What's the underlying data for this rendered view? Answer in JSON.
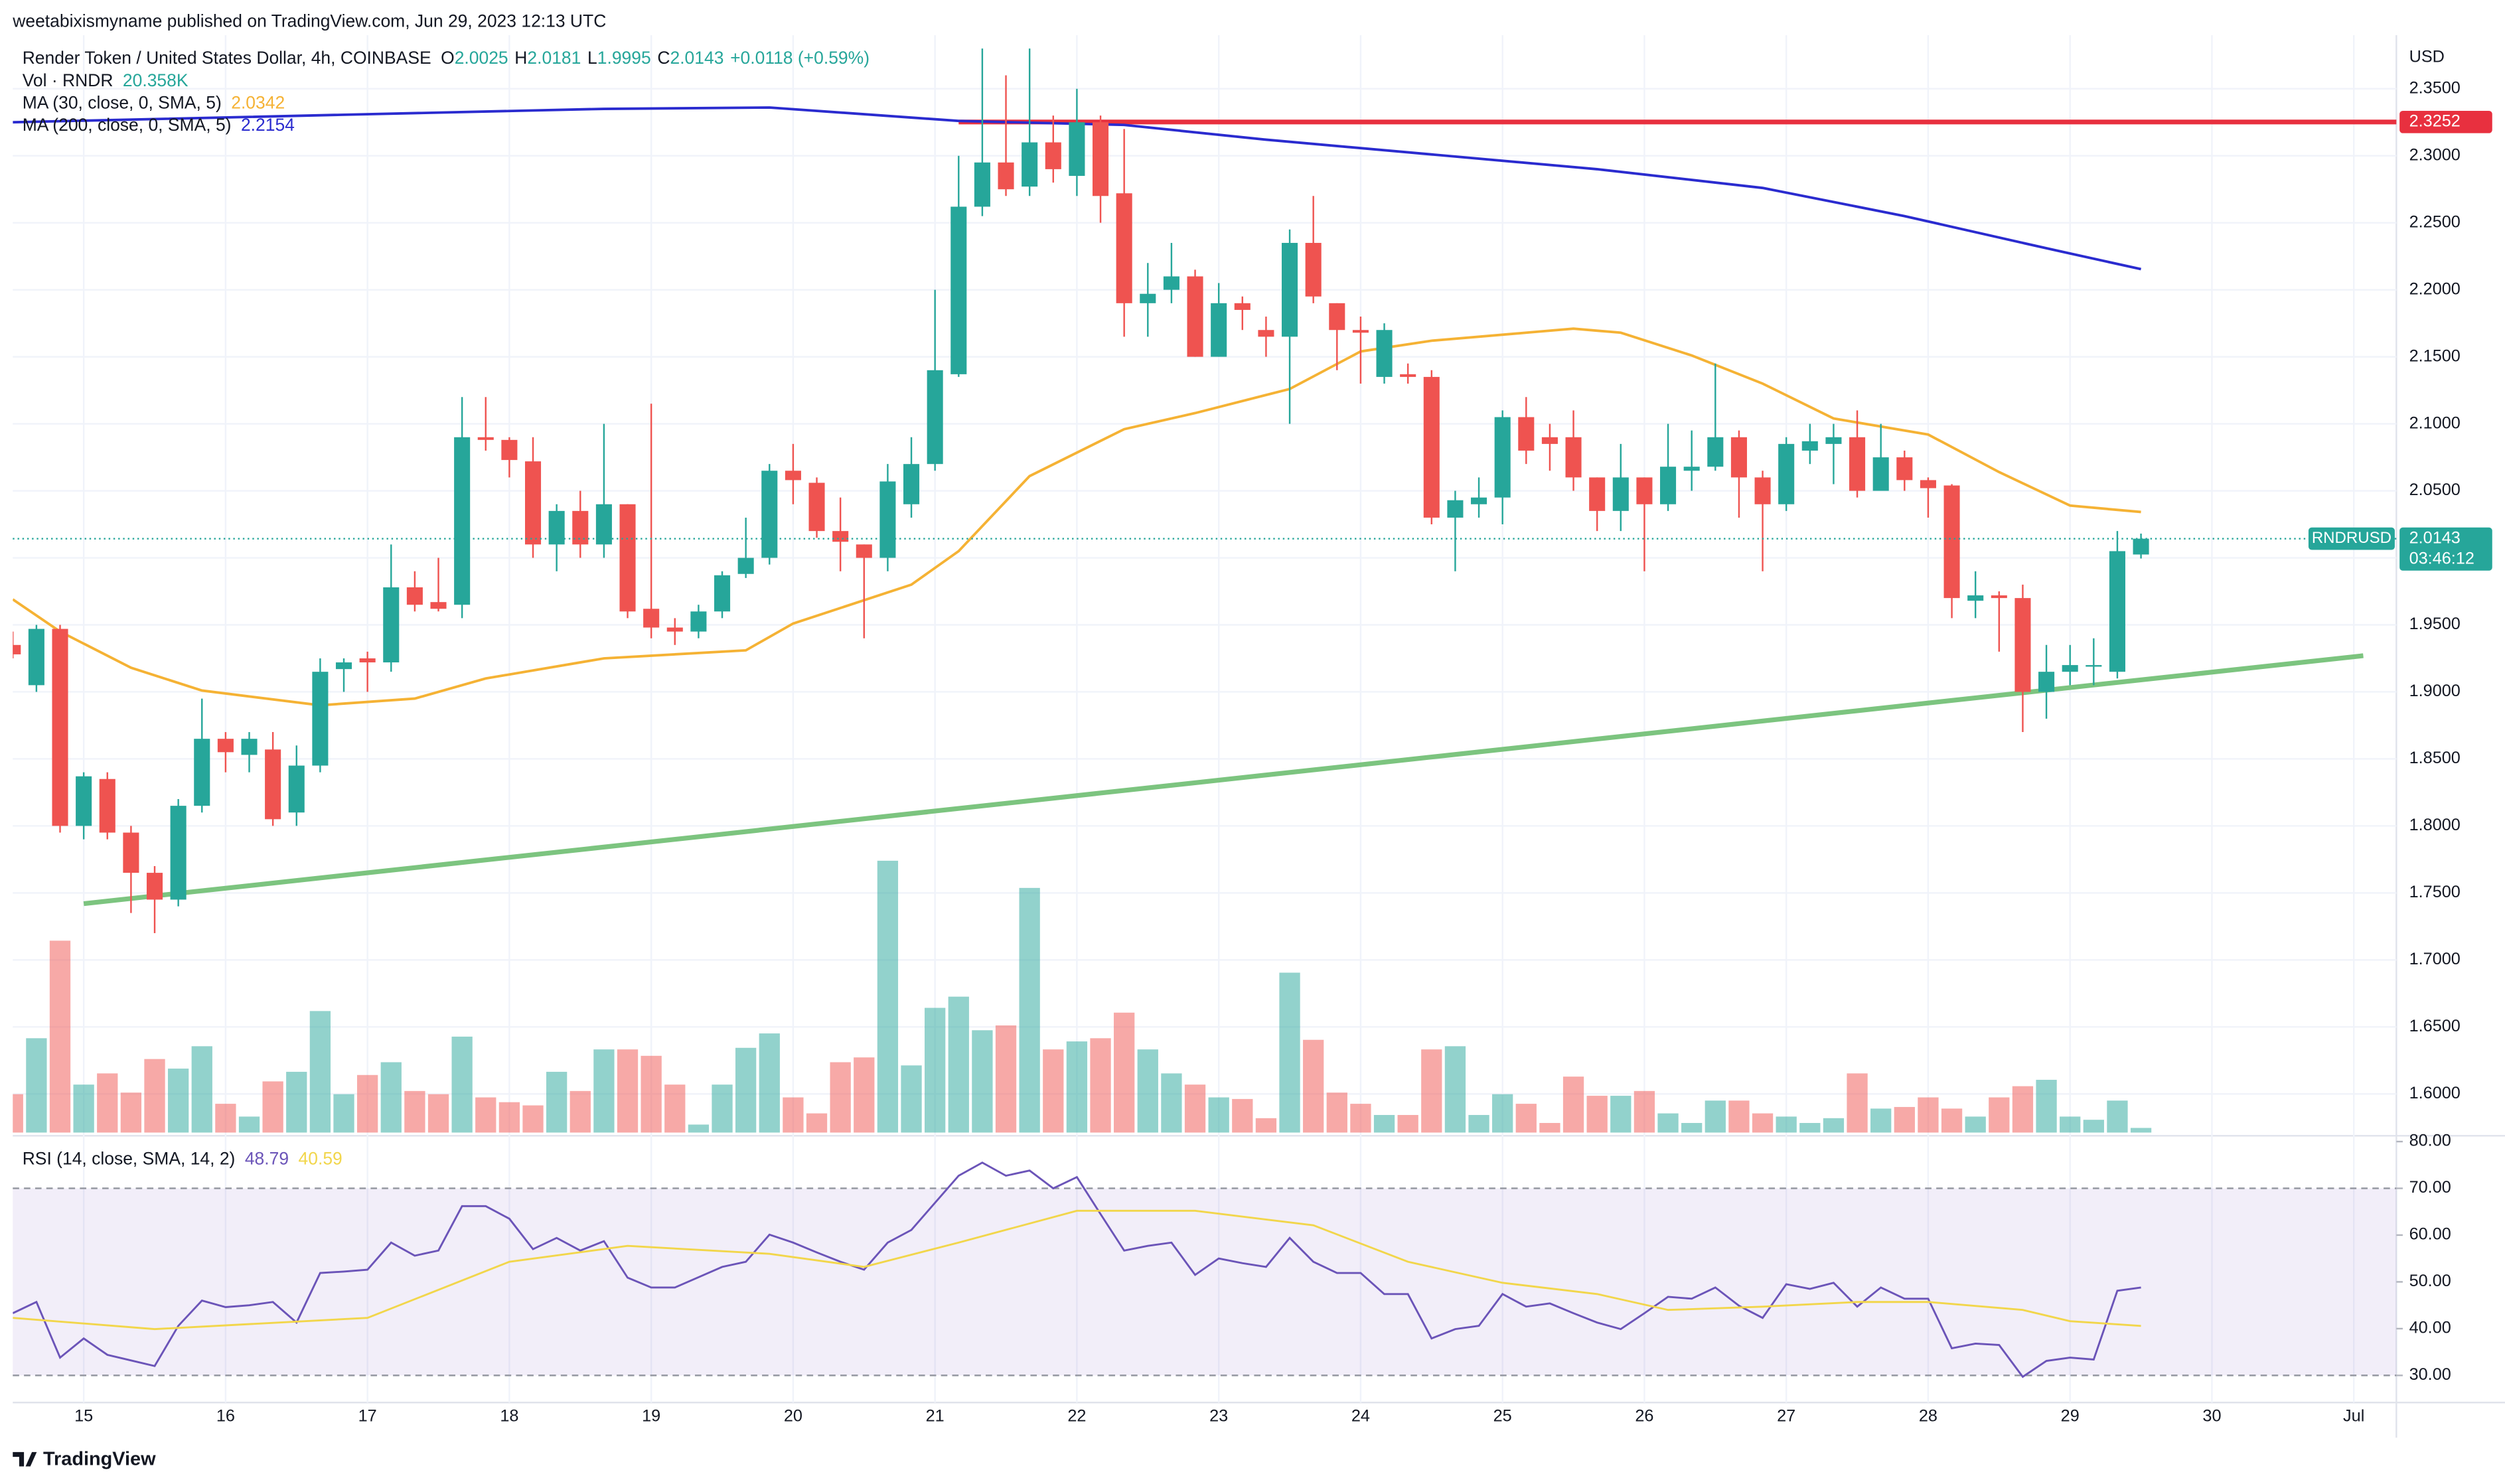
{
  "header": {
    "published": "weetabixismyname published on TradingView.com, Jun 29, 2023 12:13 UTC",
    "brand": "TradingView"
  },
  "chart_data": [
    {
      "type": "candlestick",
      "title": "Render Token / United States Dollar, 4h, COINBASE",
      "ohlc_labels": [
        "O",
        "H",
        "L",
        "C"
      ],
      "change": "+0.0118 (+0.59%)",
      "currency": "USD",
      "symbol": "RNDRUSD",
      "countdown": "03:46:12",
      "up_color": "#26a69a",
      "down_color": "#ef5350",
      "ohlc": [
        [
          1.935,
          1.945,
          1.925,
          1.928
        ],
        [
          1.905,
          1.95,
          1.9,
          1.947
        ],
        [
          1.947,
          1.95,
          1.795,
          1.8
        ],
        [
          1.8,
          1.84,
          1.79,
          1.837
        ],
        [
          1.835,
          1.84,
          1.79,
          1.795
        ],
        [
          1.795,
          1.8,
          1.735,
          1.765
        ],
        [
          1.765,
          1.77,
          1.72,
          1.745
        ],
        [
          1.745,
          1.82,
          1.74,
          1.815
        ],
        [
          1.815,
          1.895,
          1.81,
          1.865
        ],
        [
          1.865,
          1.87,
          1.84,
          1.855
        ],
        [
          1.853,
          1.87,
          1.84,
          1.865
        ],
        [
          1.857,
          1.87,
          1.8,
          1.805
        ],
        [
          1.81,
          1.86,
          1.8,
          1.845
        ],
        [
          1.845,
          1.925,
          1.84,
          1.915
        ],
        [
          1.917,
          1.925,
          1.9,
          1.922
        ],
        [
          1.925,
          1.93,
          1.9,
          1.922
        ],
        [
          1.922,
          2.01,
          1.915,
          1.978
        ],
        [
          1.978,
          1.99,
          1.96,
          1.965
        ],
        [
          1.967,
          2.0,
          1.96,
          1.962
        ],
        [
          1.965,
          2.12,
          1.955,
          2.09
        ],
        [
          2.09,
          2.12,
          2.08,
          2.088
        ],
        [
          2.088,
          2.09,
          2.06,
          2.073
        ],
        [
          2.072,
          2.09,
          2.0,
          2.01
        ],
        [
          2.01,
          2.04,
          1.99,
          2.035
        ],
        [
          2.035,
          2.05,
          2.0,
          2.01
        ],
        [
          2.01,
          2.1,
          2.0,
          2.04
        ],
        [
          2.04,
          2.04,
          1.955,
          1.96
        ],
        [
          1.962,
          2.115,
          1.94,
          1.948
        ],
        [
          1.948,
          1.955,
          1.935,
          1.945
        ],
        [
          1.945,
          1.965,
          1.94,
          1.96
        ],
        [
          1.96,
          1.99,
          1.955,
          1.987
        ],
        [
          1.988,
          2.03,
          1.985,
          2.0
        ],
        [
          2.0,
          2.07,
          1.995,
          2.065
        ],
        [
          2.065,
          2.085,
          2.04,
          2.058
        ],
        [
          2.056,
          2.06,
          2.015,
          2.02
        ],
        [
          2.02,
          2.045,
          1.99,
          2.012
        ],
        [
          2.01,
          2.01,
          1.94,
          2.0
        ],
        [
          2.0,
          2.07,
          1.99,
          2.057
        ],
        [
          2.04,
          2.09,
          2.03,
          2.07
        ],
        [
          2.07,
          2.2,
          2.065,
          2.14
        ],
        [
          2.137,
          2.3,
          2.135,
          2.262
        ],
        [
          2.262,
          2.38,
          2.255,
          2.295
        ],
        [
          2.295,
          2.36,
          2.27,
          2.275
        ],
        [
          2.277,
          2.38,
          2.27,
          2.31
        ],
        [
          2.31,
          2.33,
          2.28,
          2.29
        ],
        [
          2.285,
          2.35,
          2.27,
          2.325
        ],
        [
          2.325,
          2.33,
          2.25,
          2.27
        ],
        [
          2.272,
          2.32,
          2.165,
          2.19
        ],
        [
          2.19,
          2.22,
          2.165,
          2.197
        ],
        [
          2.2,
          2.235,
          2.19,
          2.21
        ],
        [
          2.21,
          2.215,
          2.15,
          2.15
        ],
        [
          2.15,
          2.205,
          2.15,
          2.19
        ],
        [
          2.19,
          2.195,
          2.17,
          2.185
        ],
        [
          2.17,
          2.18,
          2.15,
          2.165
        ],
        [
          2.165,
          2.245,
          2.1,
          2.235
        ],
        [
          2.235,
          2.27,
          2.19,
          2.195
        ],
        [
          2.19,
          2.19,
          2.14,
          2.17
        ],
        [
          2.17,
          2.18,
          2.13,
          2.168
        ],
        [
          2.135,
          2.175,
          2.13,
          2.17
        ],
        [
          2.137,
          2.145,
          2.13,
          2.135
        ],
        [
          2.135,
          2.14,
          2.025,
          2.03
        ],
        [
          2.03,
          2.05,
          1.99,
          2.043
        ],
        [
          2.04,
          2.06,
          2.03,
          2.045
        ],
        [
          2.045,
          2.11,
          2.025,
          2.105
        ],
        [
          2.105,
          2.12,
          2.07,
          2.08
        ],
        [
          2.09,
          2.1,
          2.065,
          2.085
        ],
        [
          2.09,
          2.11,
          2.05,
          2.06
        ],
        [
          2.06,
          2.06,
          2.02,
          2.035
        ],
        [
          2.035,
          2.085,
          2.02,
          2.06
        ],
        [
          2.06,
          2.06,
          1.99,
          2.04
        ],
        [
          2.04,
          2.1,
          2.035,
          2.068
        ],
        [
          2.065,
          2.095,
          2.05,
          2.068
        ],
        [
          2.068,
          2.145,
          2.065,
          2.09
        ],
        [
          2.09,
          2.095,
          2.03,
          2.06
        ],
        [
          2.06,
          2.065,
          1.99,
          2.04
        ],
        [
          2.04,
          2.09,
          2.035,
          2.085
        ],
        [
          2.08,
          2.1,
          2.07,
          2.087
        ],
        [
          2.085,
          2.1,
          2.055,
          2.09
        ],
        [
          2.09,
          2.11,
          2.045,
          2.05
        ],
        [
          2.05,
          2.1,
          2.05,
          2.075
        ],
        [
          2.075,
          2.08,
          2.05,
          2.058
        ],
        [
          2.058,
          2.06,
          2.03,
          2.052
        ],
        [
          2.054,
          2.055,
          1.955,
          1.97
        ],
        [
          1.968,
          1.99,
          1.955,
          1.972
        ],
        [
          1.972,
          1.975,
          1.93,
          1.97
        ],
        [
          1.97,
          1.98,
          1.87,
          1.9
        ],
        [
          1.9,
          1.935,
          1.88,
          1.915
        ],
        [
          1.915,
          1.935,
          1.905,
          1.92
        ],
        [
          1.92,
          1.94,
          1.905,
          1.92
        ],
        [
          1.915,
          2.02,
          1.91,
          2.005
        ],
        [
          2.0025,
          2.0181,
          1.9995,
          2.0143
        ]
      ],
      "volume": {
        "name": "Vol · RNDR",
        "last_label": "20.358K",
        "values": [
          168,
          413,
          840,
          210,
          259,
          175,
          322,
          280,
          378,
          126,
          70,
          224,
          266,
          532,
          168,
          252,
          308,
          182,
          168,
          420,
          154,
          133,
          119,
          266,
          182,
          364,
          364,
          336,
          210,
          35,
          210,
          371,
          434,
          154,
          84,
          308,
          329,
          1190,
          294,
          546,
          595,
          448,
          469,
          1071,
          364,
          399,
          413,
          525,
          364,
          259,
          210,
          154,
          147,
          63,
          700,
          406,
          175,
          126,
          77,
          77,
          364,
          378,
          77,
          168,
          126,
          42,
          245,
          161,
          161,
          182,
          84,
          42,
          140,
          140,
          84,
          70,
          42,
          63,
          259,
          105,
          112,
          154,
          105,
          70,
          154,
          203,
          231,
          70,
          56,
          140,
          20.358
        ]
      },
      "series": [
        {
          "name": "MA (30, close, 0, SMA, 5)",
          "color": "#f5b234",
          "x": [
            0,
            2,
            5,
            8,
            13,
            17,
            20,
            25,
            31,
            33,
            38,
            40,
            43,
            47,
            50,
            54,
            57,
            60,
            64,
            66,
            68,
            71,
            74,
            77,
            81,
            84,
            87,
            90
          ],
          "values": [
            1.969,
            1.945,
            1.918,
            1.901,
            1.89,
            1.895,
            1.91,
            1.925,
            1.931,
            1.951,
            1.98,
            2.005,
            2.061,
            2.096,
            2.108,
            2.126,
            2.154,
            2.162,
            2.168,
            2.171,
            2.168,
            2.151,
            2.13,
            2.104,
            2.092,
            2.064,
            2.039,
            2.0342
          ]
        },
        {
          "name": "MA (200, close, 0, SMA, 5)",
          "color": "#2a2bcf",
          "x": [
            0,
            25,
            32,
            40,
            47,
            53,
            60,
            67,
            74,
            80,
            86,
            90
          ],
          "values": [
            2.325,
            2.335,
            2.336,
            2.326,
            2.323,
            2.312,
            2.301,
            2.29,
            2.276,
            2.255,
            2.231,
            2.2154
          ]
        }
      ],
      "hline": {
        "value": 2.3252,
        "x_start": 40,
        "color": "#e8303f"
      },
      "trendline": {
        "x": [
          3,
          99.4
        ],
        "values": [
          1.742,
          1.927
        ],
        "color": "#7cc47f"
      },
      "xlim": [
        0,
        100.8
      ],
      "ylim": [
        1.57,
        2.39
      ],
      "xticks": [
        {
          "value": 3,
          "label": "15"
        },
        {
          "value": 9,
          "label": "16"
        },
        {
          "value": 15,
          "label": "17"
        },
        {
          "value": 21,
          "label": "18"
        },
        {
          "value": 27,
          "label": "19"
        },
        {
          "value": 33,
          "label": "20"
        },
        {
          "value": 39,
          "label": "21"
        },
        {
          "value": 45,
          "label": "22"
        },
        {
          "value": 51,
          "label": "23"
        },
        {
          "value": 57,
          "label": "24"
        },
        {
          "value": 63,
          "label": "25"
        },
        {
          "value": 69,
          "label": "26"
        },
        {
          "value": 75,
          "label": "27"
        },
        {
          "value": 81,
          "label": "28"
        },
        {
          "value": 87,
          "label": "29"
        },
        {
          "value": 93,
          "label": "30"
        },
        {
          "value": 99,
          "label": "Jul"
        }
      ],
      "yticks": [
        {
          "value": 1.6,
          "label": "1.6000"
        },
        {
          "value": 1.65,
          "label": "1.6500"
        },
        {
          "value": 1.7,
          "label": "1.7000"
        },
        {
          "value": 1.75,
          "label": "1.7500"
        },
        {
          "value": 1.8,
          "label": "1.8000"
        },
        {
          "value": 1.85,
          "label": "1.8500"
        },
        {
          "value": 1.9,
          "label": "1.9000"
        },
        {
          "value": 1.95,
          "label": "1.9500"
        },
        {
          "value": 2.0,
          "label": "2.0000"
        },
        {
          "value": 2.05,
          "label": "2.0500"
        },
        {
          "value": 2.1,
          "label": "2.1000"
        },
        {
          "value": 2.15,
          "label": "2.1500"
        },
        {
          "value": 2.2,
          "label": "2.2000"
        },
        {
          "value": 2.25,
          "label": "2.2500"
        },
        {
          "value": 2.3,
          "label": "2.3000"
        },
        {
          "value": 2.35,
          "label": "2.3500"
        }
      ],
      "grid": true
    },
    {
      "type": "line",
      "title": "RSI (14, close, SMA, 14, 2)",
      "band": [
        30,
        70
      ],
      "band_color": "#7e57c2",
      "series": [
        {
          "color": "#6b54b8",
          "values": [
            43.3,
            45.7,
            33.8,
            37.9,
            34.4,
            33.2,
            32,
            40.6,
            46,
            44.6,
            45,
            45.7,
            41.3,
            51.9,
            52.2,
            52.6,
            58.4,
            55.6,
            56.7,
            66.2,
            66.2,
            63.5,
            57,
            59.4,
            56.7,
            58.7,
            50.9,
            48.8,
            48.8,
            51,
            53.2,
            54.3,
            60.1,
            58.4,
            56.3,
            54.3,
            52.6,
            58.4,
            61.1,
            66.9,
            72.7,
            75.5,
            72.7,
            73.8,
            70,
            72.4,
            64.5,
            56.7,
            57.7,
            58.4,
            51.5,
            55,
            54,
            53.2,
            59.4,
            54.3,
            51.9,
            51.9,
            47.4,
            47.4,
            37.9,
            39.9,
            40.6,
            47.4,
            44.7,
            45.4,
            43.3,
            41.3,
            39.9,
            43.3,
            46.8,
            46.4,
            48.8,
            44.9,
            42.3,
            49.5,
            48.5,
            49.8,
            44.7,
            48.8,
            46.4,
            46.4,
            35.8,
            36.8,
            36.5,
            29.7,
            33.1,
            33.8,
            33.4,
            48.1,
            48.79
          ]
        },
        {
          "color": "#f2d64b",
          "x": [
            0,
            6,
            15,
            21,
            26,
            32,
            36,
            40,
            45,
            50,
            55,
            59,
            63,
            67,
            70,
            74,
            78,
            81,
            85,
            87,
            90
          ],
          "values": [
            42.3,
            39.9,
            42.3,
            54.3,
            57.7,
            56,
            53.2,
            58.4,
            65.2,
            65.2,
            62.1,
            54.3,
            49.8,
            47.4,
            44,
            44.7,
            45.7,
            45.7,
            44,
            41.6,
            40.59
          ]
        }
      ],
      "ylim": [
        24.2,
        80.9
      ],
      "yticks": [
        {
          "value": 30,
          "label": "30.00"
        },
        {
          "value": 40,
          "label": "40.00"
        },
        {
          "value": 50,
          "label": "50.00"
        },
        {
          "value": 60,
          "label": "60.00"
        },
        {
          "value": 70,
          "label": "70.00"
        },
        {
          "value": 80,
          "label": "80.00"
        }
      ]
    }
  ]
}
